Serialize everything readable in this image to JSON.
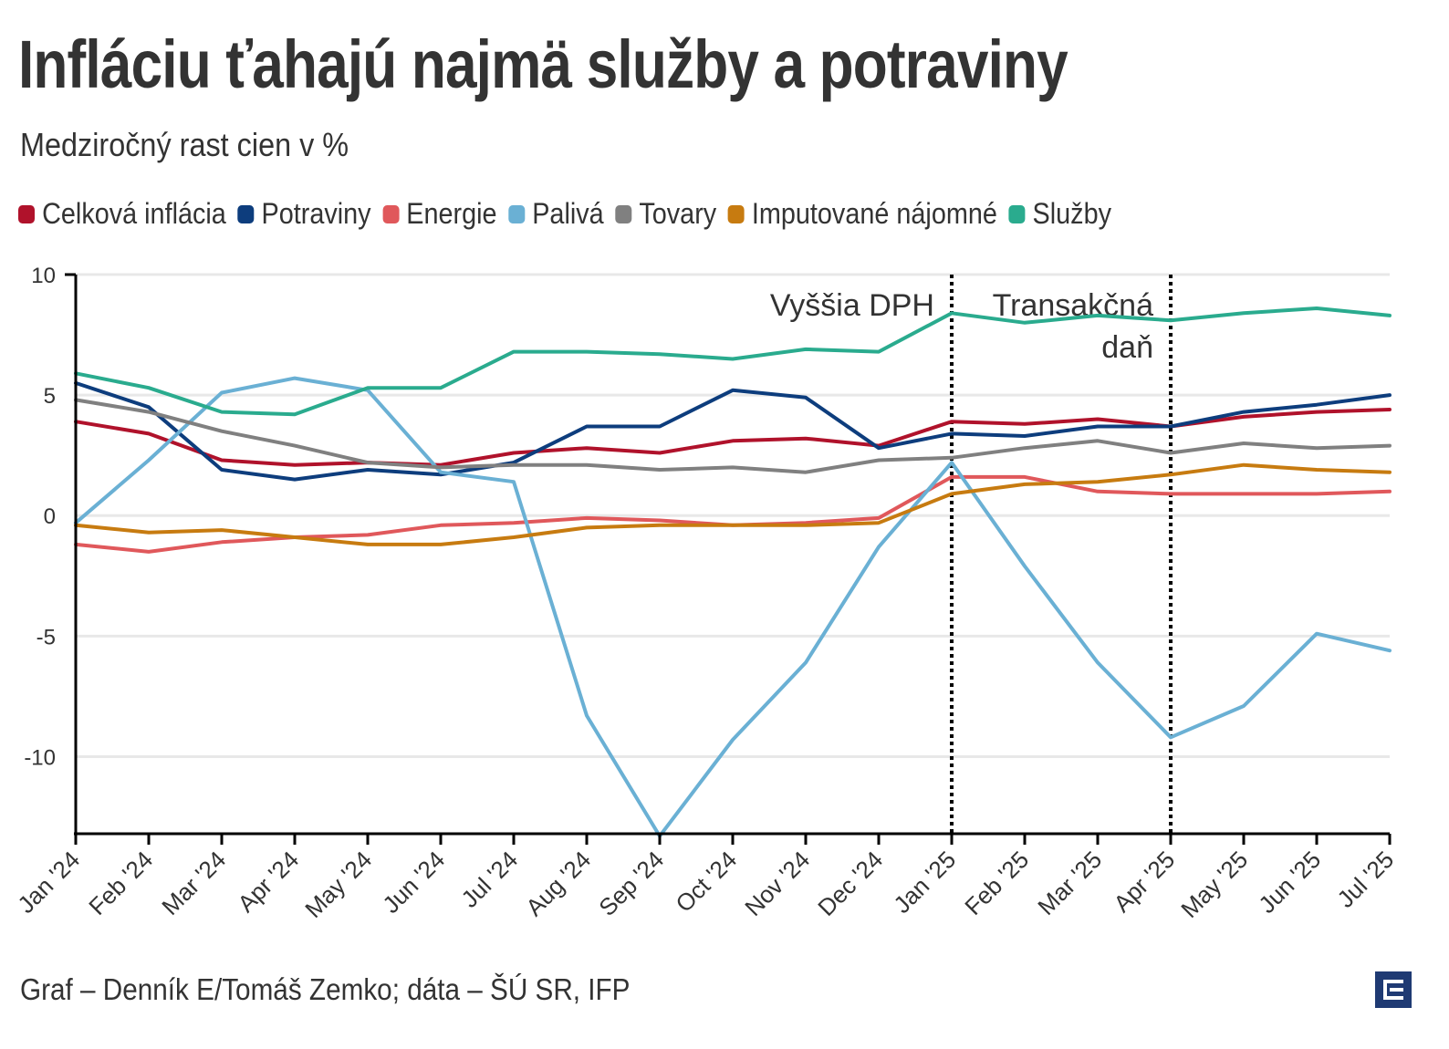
{
  "header": {
    "title": "Infláciu ťahajú najmä služby a potraviny",
    "subtitle": "Medziročný rast cien v %"
  },
  "footer": {
    "credit": "Graf – Denník E/Tomáš Zemko; dáta – ŠÚ SR, IFP",
    "logo_icon": "denník-e-logo-icon"
  },
  "chart_data": {
    "type": "line",
    "title": "Infláciu ťahajú najmä služby a potraviny",
    "subtitle": "Medziročný rast cien v %",
    "xlabel": "",
    "ylabel": "",
    "ylim": [
      -13.2,
      10
    ],
    "yticks": [
      10,
      5,
      0,
      -5,
      -10
    ],
    "ytick_labels": [
      "10",
      "5",
      "0",
      "-5",
      "-10"
    ],
    "grid": true,
    "legend_position": "top",
    "categories": [
      "Jan '24",
      "Feb '24",
      "Mar '24",
      "Apr '24",
      "May '24",
      "Jun '24",
      "Jul '24",
      "Aug '24",
      "Sep '24",
      "Oct '24",
      "Nov '24",
      "Dec '24",
      "Jan '25",
      "Feb '25",
      "Mar '25",
      "Apr '25",
      "May '25",
      "Jun '25",
      "Jul '25"
    ],
    "series": [
      {
        "name": "Celková inflácia",
        "color": "#b0122b",
        "values": [
          3.9,
          3.4,
          2.3,
          2.1,
          2.2,
          2.1,
          2.6,
          2.8,
          2.6,
          3.1,
          3.2,
          2.9,
          3.9,
          3.8,
          4.0,
          3.7,
          4.1,
          4.3,
          4.4
        ]
      },
      {
        "name": "Potraviny",
        "color": "#0d3d7d",
        "values": [
          5.5,
          4.5,
          1.9,
          1.5,
          1.9,
          1.7,
          2.2,
          3.7,
          3.7,
          5.2,
          4.9,
          2.8,
          3.4,
          3.3,
          3.7,
          3.7,
          4.3,
          4.6,
          5.0
        ]
      },
      {
        "name": "Energie",
        "color": "#e0585b",
        "values": [
          -1.2,
          -1.5,
          -1.1,
          -0.9,
          -0.8,
          -0.4,
          -0.3,
          -0.1,
          -0.2,
          -0.4,
          -0.3,
          -0.1,
          1.6,
          1.6,
          1.0,
          0.9,
          0.9,
          0.9,
          1.0
        ]
      },
      {
        "name": "Palivá",
        "color": "#6ab0d4",
        "values": [
          -0.3,
          2.3,
          5.1,
          5.7,
          5.2,
          1.8,
          1.4,
          -8.3,
          -13.3,
          -9.3,
          -6.1,
          -1.3,
          2.2,
          -2.1,
          -6.1,
          -9.2,
          -7.9,
          -4.9,
          -5.6
        ]
      },
      {
        "name": "Tovary",
        "color": "#808080",
        "values": [
          4.8,
          4.3,
          3.5,
          2.9,
          2.2,
          2.0,
          2.1,
          2.1,
          1.9,
          2.0,
          1.8,
          2.3,
          2.4,
          2.8,
          3.1,
          2.6,
          3.0,
          2.8,
          2.9
        ]
      },
      {
        "name": "Imputované nájomné",
        "color": "#c77b10",
        "values": [
          -0.4,
          -0.7,
          -0.6,
          -0.9,
          -1.2,
          -1.2,
          -0.9,
          -0.5,
          -0.4,
          -0.4,
          -0.4,
          -0.3,
          0.9,
          1.3,
          1.4,
          1.7,
          2.1,
          1.9,
          1.8
        ]
      },
      {
        "name": "Služby",
        "color": "#2aab8e",
        "values": [
          5.9,
          5.3,
          4.3,
          4.2,
          5.3,
          5.3,
          6.8,
          6.8,
          6.7,
          6.5,
          6.9,
          6.8,
          8.4,
          8.0,
          8.3,
          8.1,
          8.4,
          8.6,
          8.3
        ]
      }
    ],
    "annotations": [
      {
        "category_index": 12,
        "lines": [
          "Vyššia DPH"
        ],
        "side": "left"
      },
      {
        "category_index": 15,
        "lines": [
          "Transakčná",
          "daň"
        ],
        "side": "left"
      }
    ]
  }
}
